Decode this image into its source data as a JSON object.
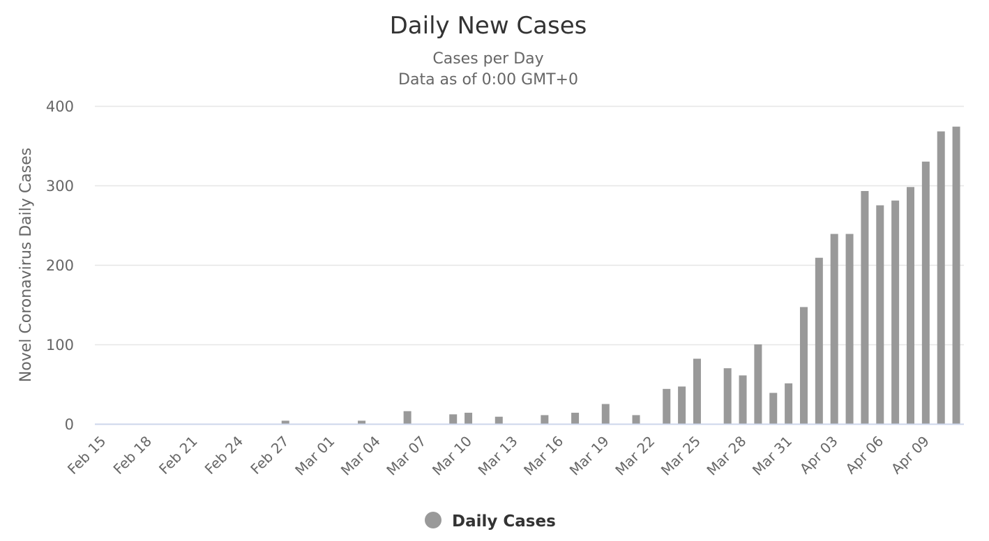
{
  "chart_data": {
    "type": "bar",
    "title": "Daily New Cases",
    "subtitle": [
      "Cases per Day",
      "Data as of 0:00 GMT+0"
    ],
    "xlabel": "",
    "ylabel": "Novel Coronavirus Daily Cases",
    "ylim": [
      0,
      400
    ],
    "yticks": [
      0,
      100,
      200,
      300,
      400
    ],
    "grid": true,
    "legend": {
      "position": "bottom",
      "entries": [
        "Daily Cases"
      ]
    },
    "bar_color": "#999999",
    "xtick_labels": [
      "Feb 15",
      "Feb 18",
      "Feb 21",
      "Feb 24",
      "Feb 27",
      "Mar 01",
      "Mar 04",
      "Mar 07",
      "Mar 10",
      "Mar 13",
      "Mar 16",
      "Mar 19",
      "Mar 22",
      "Mar 25",
      "Mar 28",
      "Mar 31",
      "Apr 03",
      "Apr 06",
      "Apr 09"
    ],
    "categories": [
      "Feb 15",
      "Feb 16",
      "Feb 17",
      "Feb 18",
      "Feb 19",
      "Feb 20",
      "Feb 21",
      "Feb 22",
      "Feb 23",
      "Feb 24",
      "Feb 25",
      "Feb 26",
      "Feb 27",
      "Feb 28",
      "Feb 29",
      "Mar 01",
      "Mar 02",
      "Mar 03",
      "Mar 04",
      "Mar 05",
      "Mar 06",
      "Mar 07",
      "Mar 08",
      "Mar 09",
      "Mar 10",
      "Mar 11",
      "Mar 12",
      "Mar 13",
      "Mar 14",
      "Mar 15",
      "Mar 16",
      "Mar 17",
      "Mar 18",
      "Mar 19",
      "Mar 20",
      "Mar 21",
      "Mar 22",
      "Mar 23",
      "Mar 24",
      "Mar 25",
      "Mar 26",
      "Mar 27",
      "Mar 28",
      "Mar 29",
      "Mar 30",
      "Mar 31",
      "Apr 01",
      "Apr 02",
      "Apr 03",
      "Apr 04",
      "Apr 05",
      "Apr 06",
      "Apr 07",
      "Apr 08",
      "Apr 09",
      "Apr 10",
      "Apr 11"
    ],
    "series": [
      {
        "name": "Daily Cases",
        "values": [
          0,
          0,
          0,
          0,
          0,
          0,
          0,
          0,
          0,
          0,
          0,
          0,
          4,
          0,
          0,
          0,
          0,
          4,
          0,
          0,
          16,
          0,
          0,
          12,
          14,
          0,
          9,
          0,
          0,
          11,
          0,
          14,
          0,
          25,
          0,
          11,
          0,
          44,
          47,
          82,
          0,
          70,
          61,
          100,
          39,
          51,
          147,
          209,
          239,
          239,
          293,
          275,
          281,
          298,
          330,
          368,
          374
        ]
      }
    ]
  }
}
